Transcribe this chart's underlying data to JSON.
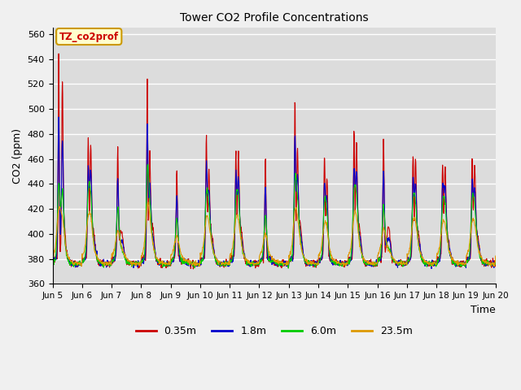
{
  "title": "Tower CO2 Profile Concentrations",
  "xlabel": "Time",
  "ylabel": "CO2 (ppm)",
  "ylim": [
    360,
    565
  ],
  "xlim": [
    0,
    360
  ],
  "plot_bg": "#dcdcdc",
  "fig_bg": "#f0f0f0",
  "annotation_text": "TZ_co2prof",
  "annotation_bg": "#ffffcc",
  "annotation_border": "#cc0000",
  "lines": {
    "0.35m": {
      "color": "#cc0000",
      "lw": 0.8
    },
    "1.8m": {
      "color": "#0000cc",
      "lw": 0.8
    },
    "6.0m": {
      "color": "#00cc00",
      "lw": 0.8
    },
    "23.5m": {
      "color": "#dd9900",
      "lw": 0.8
    }
  },
  "xtick_labels": [
    "Jun 5",
    "Jun 6",
    "Jun 7",
    "Jun 8",
    "Jun 9",
    "Jun 10",
    "Jun 11",
    "Jun 12",
    "Jun 13",
    "Jun 14",
    "Jun 15",
    "Jun 16",
    "Jun 17",
    "Jun 18",
    "Jun 19",
    "Jun 20"
  ],
  "xtick_positions": [
    0,
    24,
    48,
    72,
    96,
    120,
    144,
    168,
    192,
    216,
    240,
    264,
    288,
    312,
    336,
    360
  ],
  "ytick_values": [
    360,
    380,
    400,
    420,
    440,
    460,
    480,
    500,
    520,
    540,
    560
  ],
  "n_points": 1440,
  "base_co2": 376,
  "seed": 7
}
